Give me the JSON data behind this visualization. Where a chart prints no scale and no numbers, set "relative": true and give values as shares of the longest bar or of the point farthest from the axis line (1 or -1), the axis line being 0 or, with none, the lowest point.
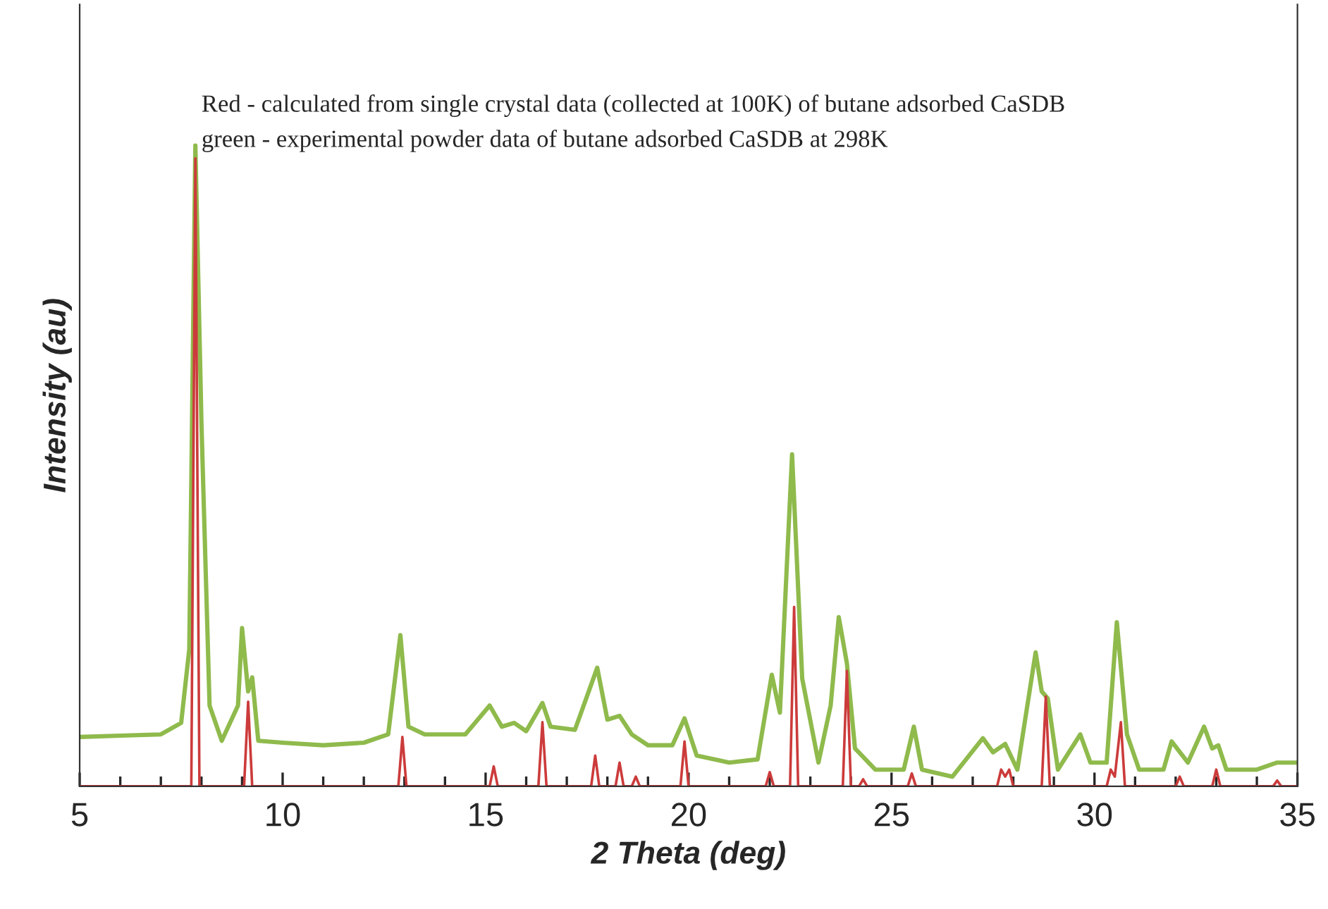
{
  "chart_data": {
    "type": "line",
    "relative": true,
    "xlabel": "2 Theta (deg)",
    "ylabel": "Intensity (au)",
    "xlim": [
      5,
      35
    ],
    "xticks": [
      5,
      10,
      15,
      20,
      25,
      30,
      35
    ],
    "grid": false,
    "legend": false,
    "marker": "none",
    "line_style": "solid",
    "annotations": [
      "Red - calculated from single crystal data (collected at 100K) of butane adsorbed CaSDB",
      "green - experimental powder data of butane adsorbed CaSDB at 298K"
    ],
    "series": [
      {
        "color": "#8fba4c",
        "x": [
          5.0,
          6.0,
          7.0,
          7.5,
          7.7,
          7.85,
          8.0,
          8.2,
          8.5,
          8.9,
          9.0,
          9.15,
          9.25,
          9.4,
          10.0,
          11.0,
          12.0,
          12.6,
          12.9,
          13.1,
          13.5,
          14.5,
          15.1,
          15.4,
          15.7,
          16.0,
          16.4,
          16.6,
          17.2,
          17.75,
          18.0,
          18.3,
          18.6,
          19.0,
          19.6,
          19.9,
          20.2,
          21.0,
          21.7,
          22.05,
          22.25,
          22.55,
          22.8,
          23.2,
          23.5,
          23.7,
          23.9,
          24.1,
          24.6,
          25.3,
          25.55,
          25.75,
          26.5,
          27.25,
          27.5,
          27.8,
          28.1,
          28.55,
          28.7,
          28.85,
          29.1,
          29.65,
          29.9,
          30.3,
          30.55,
          30.8,
          31.1,
          31.7,
          31.9,
          32.3,
          32.7,
          32.9,
          33.05,
          33.25,
          34.0,
          34.5,
          35.0
        ],
        "values": [
          0.077,
          0.079,
          0.081,
          0.099,
          0.214,
          1.0,
          0.566,
          0.126,
          0.071,
          0.126,
          0.247,
          0.148,
          0.17,
          0.071,
          0.068,
          0.064,
          0.068,
          0.081,
          0.236,
          0.093,
          0.081,
          0.081,
          0.126,
          0.093,
          0.099,
          0.086,
          0.13,
          0.093,
          0.088,
          0.185,
          0.104,
          0.11,
          0.081,
          0.064,
          0.064,
          0.106,
          0.048,
          0.037,
          0.042,
          0.174,
          0.115,
          0.518,
          0.168,
          0.037,
          0.126,
          0.264,
          0.192,
          0.059,
          0.026,
          0.026,
          0.093,
          0.026,
          0.015,
          0.075,
          0.053,
          0.066,
          0.026,
          0.209,
          0.148,
          0.137,
          0.026,
          0.081,
          0.037,
          0.037,
          0.256,
          0.081,
          0.026,
          0.026,
          0.07,
          0.037,
          0.093,
          0.059,
          0.064,
          0.026,
          0.026,
          0.037,
          0.037
        ]
      },
      {
        "color": "#cc3b3b",
        "x": [
          5.0,
          7.75,
          7.85,
          7.95,
          9.05,
          9.15,
          9.25,
          12.85,
          12.95,
          13.05,
          15.1,
          15.2,
          15.3,
          16.3,
          16.4,
          16.5,
          17.6,
          17.7,
          17.8,
          18.2,
          18.3,
          18.4,
          18.6,
          18.7,
          18.8,
          19.8,
          19.9,
          20.0,
          21.9,
          22.0,
          22.1,
          22.5,
          22.6,
          22.7,
          23.8,
          23.9,
          24.0,
          24.2,
          24.3,
          24.4,
          25.4,
          25.5,
          25.6,
          27.6,
          27.7,
          27.8,
          27.9,
          28.0,
          28.7,
          28.8,
          28.9,
          30.3,
          30.4,
          30.5,
          30.65,
          30.75,
          32.0,
          32.1,
          32.2,
          32.9,
          33.0,
          33.1,
          34.4,
          34.5,
          34.6,
          35.0
        ],
        "values": [
          0,
          0,
          0.98,
          0,
          0,
          0.132,
          0,
          0,
          0.077,
          0,
          0,
          0.031,
          0,
          0,
          0.1,
          0,
          0,
          0.048,
          0,
          0,
          0.037,
          0,
          0,
          0.015,
          0,
          0,
          0.07,
          0,
          0,
          0.022,
          0,
          0,
          0.28,
          0,
          0,
          0.18,
          0,
          0,
          0.011,
          0,
          0,
          0.02,
          0,
          0,
          0.026,
          0.015,
          0.026,
          0,
          0,
          0.14,
          0,
          0,
          0.026,
          0.015,
          0.1,
          0,
          0,
          0.015,
          0,
          0,
          0.026,
          0,
          0,
          0.009,
          0,
          0
        ]
      }
    ]
  }
}
